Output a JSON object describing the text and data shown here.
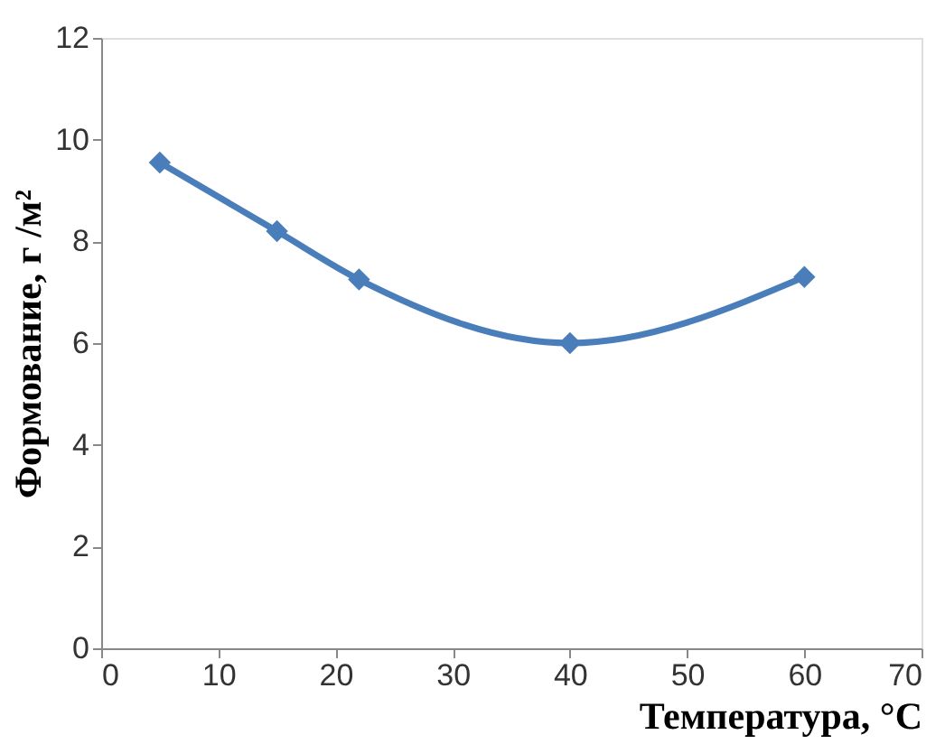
{
  "chart_data": {
    "type": "line",
    "xlabel": "Температура, °C",
    "ylabel": "Формование, г /м²",
    "x": [
      5,
      15,
      22,
      40,
      60
    ],
    "series": [
      {
        "color": "#4a7ebb",
        "values": [
          9.55,
          8.2,
          7.25,
          6.0,
          7.3
        ]
      }
    ],
    "xlim": [
      0,
      70
    ],
    "xticks": [
      0,
      10,
      20,
      30,
      40,
      50,
      60,
      70
    ],
    "ylim": [
      0,
      12
    ],
    "yticks": [
      0,
      2,
      4,
      6,
      8,
      10,
      12
    ],
    "grid": false,
    "marker": "diamond",
    "line_style": "solid"
  }
}
